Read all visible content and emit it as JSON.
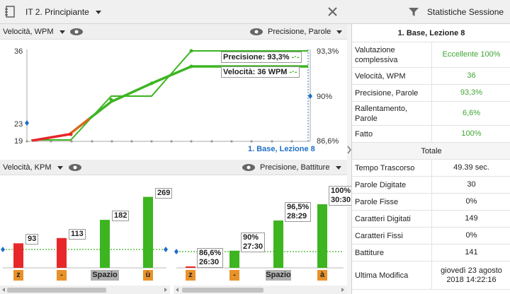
{
  "header": {
    "lesson_title": "IT 2. Principiante",
    "stats_title": "Statistiche Sessione"
  },
  "speed_chart": {
    "left_selector": "Velocità, WPM",
    "right_selector": "Precisione, Parole",
    "left_ticks": [
      "36",
      "23",
      "19"
    ],
    "right_ticks": [
      "93,3%",
      "90%",
      "86,6%"
    ],
    "tooltip_accuracy": "Precisione: 93,3%",
    "tooltip_speed": "Velocità: 36 WPM",
    "lesson_marker": "1. Base, Lezione 8"
  },
  "bottom_bar": {
    "left_selector": "Velocità, KPM",
    "right_selector": "Precisione, Battiture"
  },
  "kpm_chart": {
    "bars": [
      {
        "label": "93",
        "key": "z",
        "value": 93,
        "color": "#e8272a",
        "key_color": "#e8922a"
      },
      {
        "label": "113",
        "key": "-",
        "value": 113,
        "color": "#e8272a",
        "key_color": "#e8922a"
      },
      {
        "label": "182",
        "key": "Spazio",
        "value": 182,
        "color": "#3cb521",
        "key_color": "#b0b0b0"
      },
      {
        "label": "269",
        "key": "ù",
        "value": 269,
        "color": "#3cb521",
        "key_color": "#e8922a"
      }
    ]
  },
  "keystroke_chart": {
    "bars": [
      {
        "label1": "86,6%",
        "label2": "26:30",
        "key": "z",
        "value": 86.6,
        "color": "#e8272a",
        "key_color": "#e8922a"
      },
      {
        "label1": "90%",
        "label2": "27:30",
        "key": "-",
        "value": 90,
        "color": "#3cb521",
        "key_color": "#e8922a"
      },
      {
        "label1": "96,5%",
        "label2": "28:29",
        "key": "Spazio",
        "value": 96.5,
        "color": "#3cb521",
        "key_color": "#b0b0b0"
      },
      {
        "label1": "100%",
        "label2": "30:30",
        "key": "à",
        "value": 100,
        "color": "#3cb521",
        "key_color": "#e8922a"
      }
    ]
  },
  "stats": {
    "lesson": "1. Base, Lezione 8",
    "rows": [
      {
        "key": "Valutazione complessiva",
        "value": "Eccellente 100%"
      },
      {
        "key": "Velocità, WPM",
        "value": "36"
      },
      {
        "key": "Precisione, Parole",
        "value": "93,3%"
      },
      {
        "key": "Rallentamento, Parole",
        "value": "6,6%"
      },
      {
        "key": "Fatto",
        "value": "100%"
      }
    ],
    "totals_header": "Totale",
    "totals": [
      {
        "key": "Tempo Trascorso",
        "value": "49.39 sec."
      },
      {
        "key": "Parole Digitate",
        "value": "30"
      },
      {
        "key": "Parole Fisse",
        "value": "0%"
      },
      {
        "key": "Caratteri Digitati",
        "value": "149"
      },
      {
        "key": "Caratteri Fissi",
        "value": "0%"
      },
      {
        "key": "Battiture",
        "value": "141"
      },
      {
        "key": "Ultima Modifica",
        "value": "giovedì 23 agosto 2018  14:22:16"
      }
    ]
  },
  "colors": {
    "green": "#3cb521",
    "red": "#e8272a",
    "marker_blue": "#1f6fc5",
    "key_orange": "#e8922a"
  }
}
